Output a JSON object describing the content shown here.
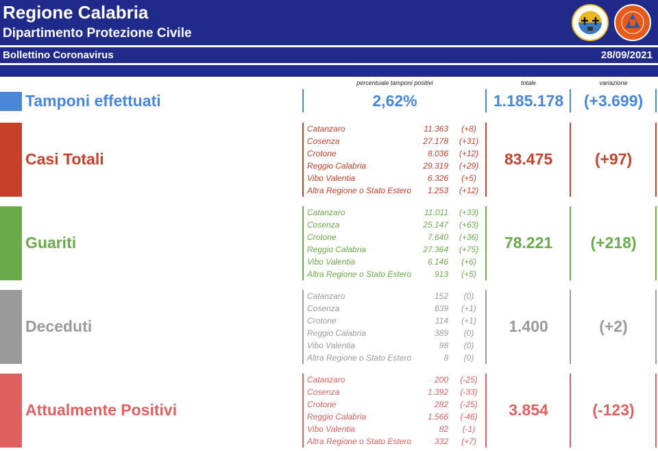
{
  "header": {
    "title": "Regione Calabria",
    "subtitle": "Dipartimento Protezione Civile",
    "bulletin": "Bollettino Coronavirus",
    "date": "28/09/2021"
  },
  "columns": {
    "positive_pct": "percentuale tamponi positivi",
    "total": "totale",
    "variation": "variazione"
  },
  "tamponi": {
    "label": "Tamponi effettuati",
    "percent": "2,62%",
    "total": "1.185.178",
    "variation": "(+3.699)",
    "color": "#4a86d8"
  },
  "sections": [
    {
      "label": "Casi Totali",
      "total": "83.475",
      "variation": "(+97)",
      "color": "#c8402a",
      "rows": [
        {
          "name": "Catanzaro",
          "value": "11.363",
          "delta": "(+8)"
        },
        {
          "name": "Cosenza",
          "value": "27.178",
          "delta": "(+31)"
        },
        {
          "name": "Crotone",
          "value": "8.036",
          "delta": "(+12)"
        },
        {
          "name": "Reggio Calabria",
          "value": "29.319",
          "delta": "(+29)"
        },
        {
          "name": "Vibo Valentia",
          "value": "6.326",
          "delta": "(+5)"
        },
        {
          "name": "Altra Regione o Stato Estero",
          "value": "1.253",
          "delta": "(+12)"
        }
      ]
    },
    {
      "label": "Guariti",
      "total": "78.221",
      "variation": "(+218)",
      "color": "#6aaa4a",
      "rows": [
        {
          "name": "Catanzaro",
          "value": "11.011",
          "delta": "(+33)"
        },
        {
          "name": "Cosenza",
          "value": "25.147",
          "delta": "(+63)"
        },
        {
          "name": "Crotone",
          "value": "7.640",
          "delta": "(+36)"
        },
        {
          "name": "Reggio Calabria",
          "value": "27.364",
          "delta": "(+75)"
        },
        {
          "name": "Vibo Valentia",
          "value": "6.146",
          "delta": "(+6)"
        },
        {
          "name": "Altra Regione o Stato Estero",
          "value": "913",
          "delta": "(+5)"
        }
      ]
    },
    {
      "label": "Deceduti",
      "total": "1.400",
      "variation": "(+2)",
      "color": "#9a9a9a",
      "rows": [
        {
          "name": "Catanzaro",
          "value": "152",
          "delta": "(0)"
        },
        {
          "name": "Cosenza",
          "value": "639",
          "delta": "(+1)"
        },
        {
          "name": "Crotone",
          "value": "114",
          "delta": "(+1)"
        },
        {
          "name": "Reggio Calabria",
          "value": "389",
          "delta": "(0)"
        },
        {
          "name": "Vibo Valentia",
          "value": "98",
          "delta": "(0)"
        },
        {
          "name": "Altra Regione o Stato Estero",
          "value": "8",
          "delta": "(0)"
        }
      ]
    },
    {
      "label": "Attualmente Positivi",
      "total": "3.854",
      "variation": "(-123)",
      "color": "#e06060",
      "rows": [
        {
          "name": "Catanzaro",
          "value": "200",
          "delta": "(-25)"
        },
        {
          "name": "Cosenza",
          "value": "1.392",
          "delta": "(-33)"
        },
        {
          "name": "Crotone",
          "value": "282",
          "delta": "(-25)"
        },
        {
          "name": "Reggio Calabria",
          "value": "1.566",
          "delta": "(-46)"
        },
        {
          "name": "Vibo Valentia",
          "value": "82",
          "delta": "(-1)"
        },
        {
          "name": "Altra Regione o Stato Estero",
          "value": "332",
          "delta": "(+7)"
        }
      ]
    }
  ]
}
